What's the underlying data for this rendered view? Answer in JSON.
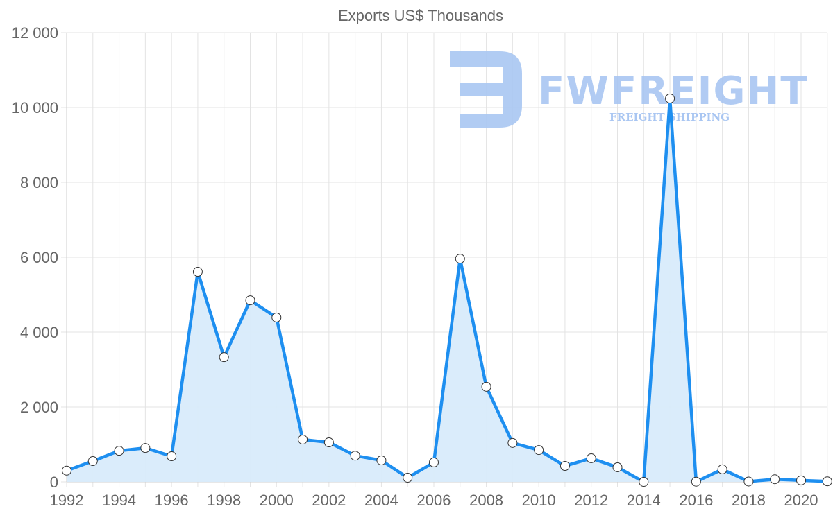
{
  "chart_data": {
    "type": "line",
    "title": "Exports US$ Thousands",
    "xlabel": "",
    "ylabel": "",
    "x": [
      1992,
      1993,
      1994,
      1995,
      1996,
      1997,
      1998,
      1999,
      2000,
      2001,
      2002,
      2003,
      2004,
      2005,
      2006,
      2007,
      2008,
      2009,
      2010,
      2011,
      2012,
      2013,
      2014,
      2015,
      2016,
      2017,
      2018,
      2019,
      2020,
      2021
    ],
    "series": [
      {
        "name": "Exports US$ Thousands",
        "values": [
          300,
          555,
          830,
          905,
          685,
          5610,
          3330,
          4850,
          4390,
          1130,
          1055,
          700,
          575,
          110,
          520,
          5960,
          2540,
          1040,
          850,
          425,
          630,
          390,
          0,
          10240,
          5,
          335,
          10,
          70,
          40,
          15
        ],
        "color": "#1e8ff0",
        "fill": "#d8ebfb",
        "area": true
      }
    ],
    "ylim": [
      0,
      12000
    ],
    "yticks": [
      0,
      2000,
      4000,
      6000,
      8000,
      10000,
      12000
    ],
    "ytick_labels": [
      "0",
      "2 000",
      "4 000",
      "6 000",
      "8 000",
      "10 000",
      "12 000"
    ],
    "xtick_labels": [
      "1992",
      "1994",
      "1996",
      "1998",
      "2000",
      "2002",
      "2004",
      "2006",
      "2008",
      "2010",
      "2012",
      "2014",
      "2016",
      "2018",
      "2020"
    ],
    "grid": true,
    "legend": "none"
  },
  "watermark": {
    "brand": "FWFREIGHT",
    "tagline": "FREIGHT SHIPPING",
    "color": "#a9c6f2"
  },
  "colors": {
    "line": "#1e8ff0",
    "area": "#d8ebfb",
    "grid": "#e3e3e3",
    "text": "#666666",
    "marker_fill": "#ffffff",
    "marker_stroke": "#333333"
  }
}
